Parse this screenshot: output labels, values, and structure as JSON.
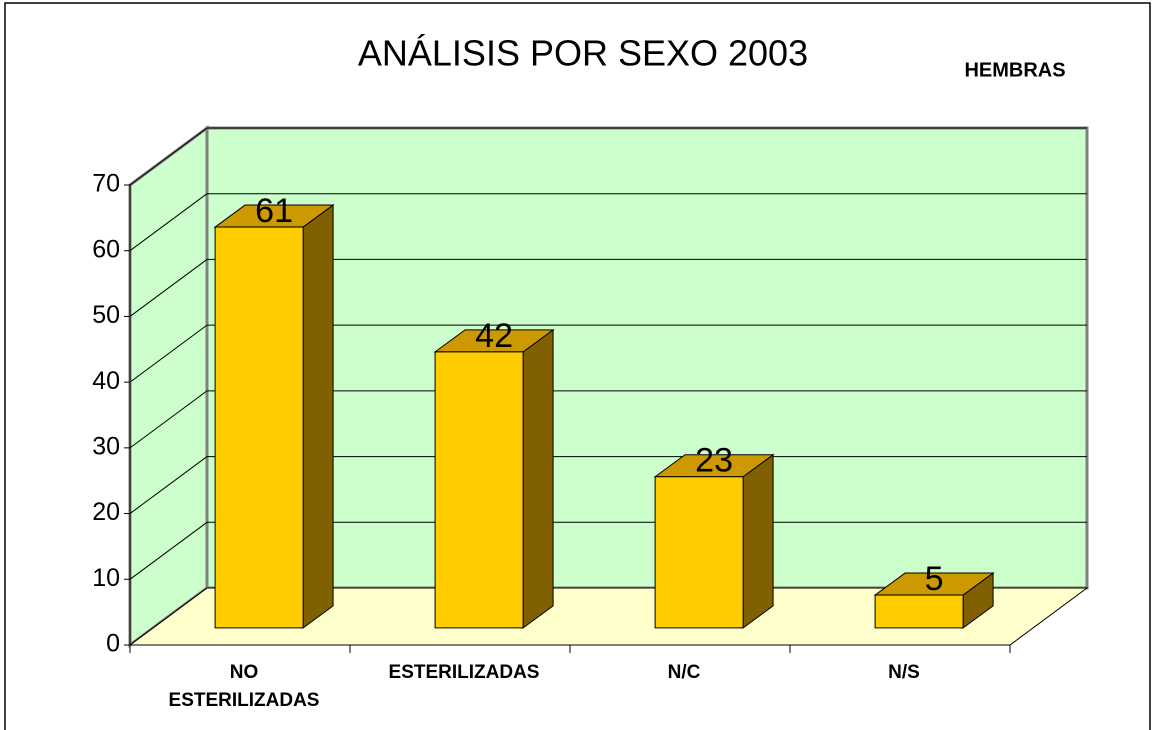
{
  "chart_data": {
    "type": "bar3d",
    "title": "ANÁLISIS POR SEXO 2003",
    "subtitle": "HEMBRAS",
    "categories": [
      "NO ESTERILIZADAS",
      "ESTERILIZADAS",
      "N/C",
      "N/S"
    ],
    "values": [
      61,
      42,
      23,
      5
    ],
    "color": "#ffcc00",
    "ylim": [
      0,
      70
    ],
    "yticks": [
      0,
      10,
      20,
      30,
      40,
      50,
      60,
      70
    ],
    "grid": true
  }
}
